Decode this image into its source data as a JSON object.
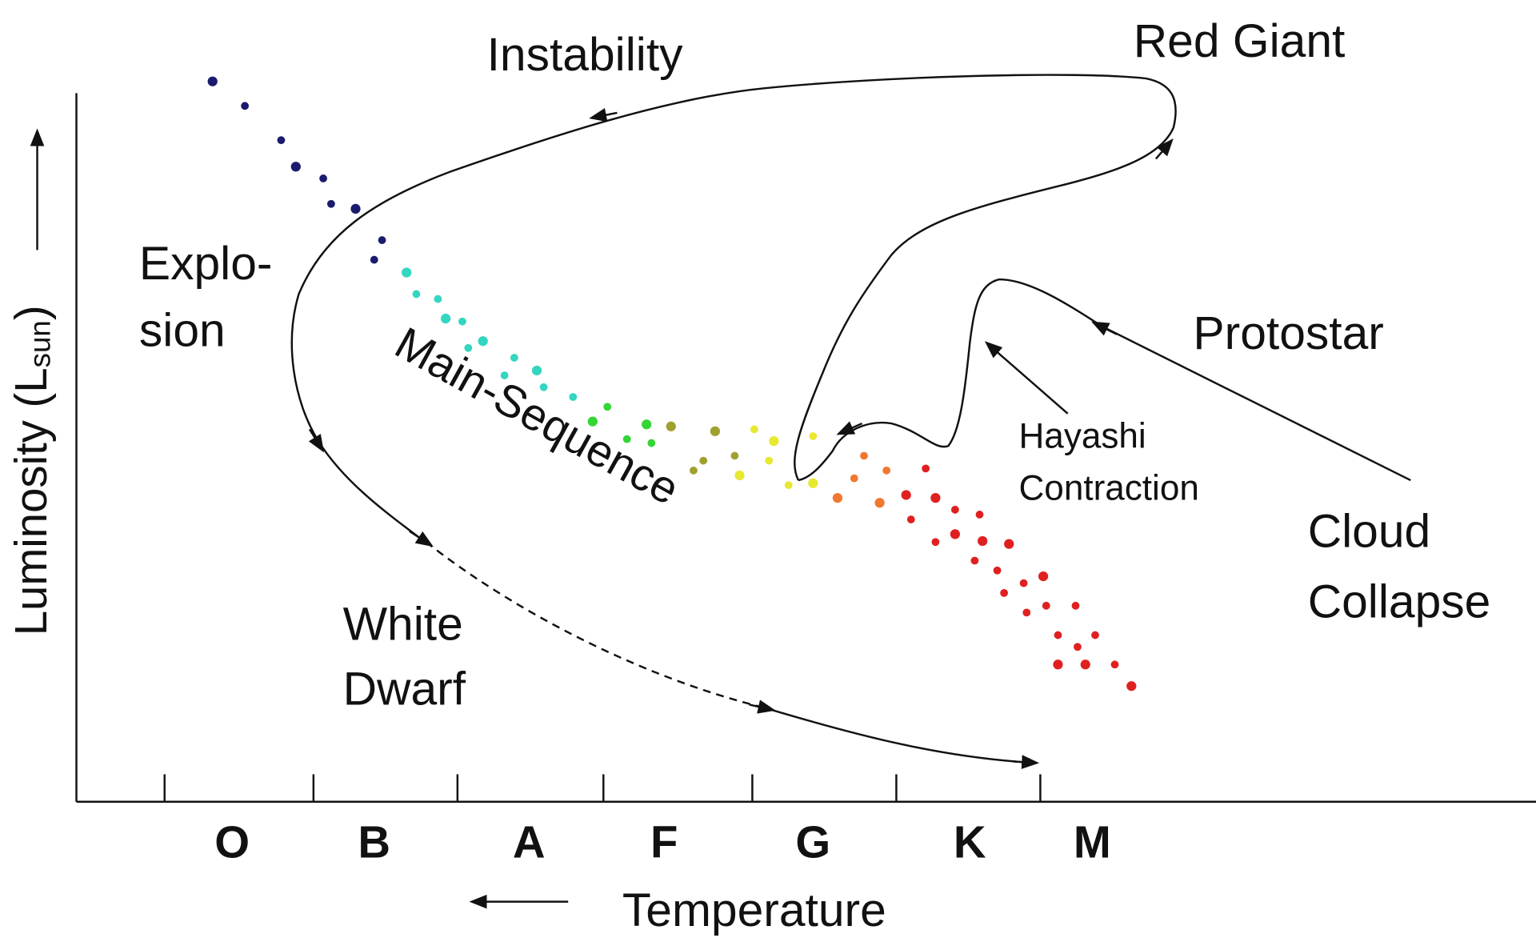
{
  "diagram": {
    "y_axis": {
      "label": "Luminosity (L",
      "label_sub": "sun",
      "label_end": ")"
    },
    "x_axis": {
      "label": "Temperature",
      "classes": [
        "O",
        "B",
        "A",
        "F",
        "G",
        "K",
        "M"
      ]
    },
    "labels": [
      {
        "lines": [
          "Instability"
        ]
      },
      {
        "lines": [
          "Red Giant"
        ]
      },
      {
        "lines": [
          "Explo-",
          "sion"
        ]
      },
      {
        "lines": [
          "Protostar"
        ]
      },
      {
        "lines": [
          "Hayashi",
          "Contraction"
        ]
      },
      {
        "lines": [
          "Cloud",
          "Collapse"
        ]
      },
      {
        "lines": [
          "White",
          "Dwarf"
        ]
      }
    ],
    "main_sequence": "Main-Sequence"
  }
}
